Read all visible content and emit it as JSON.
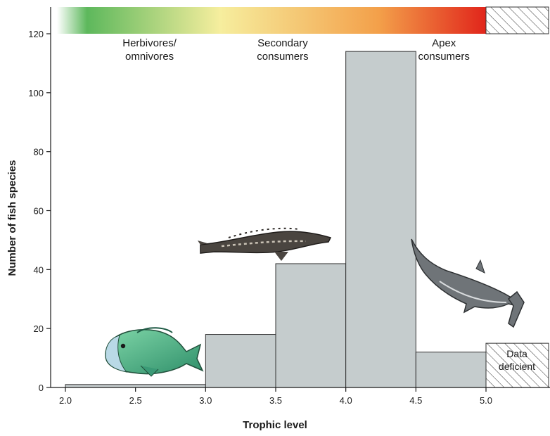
{
  "chart_data": {
    "type": "bar",
    "title": "",
    "xlabel": "Trophic level",
    "ylabel": "Number of fish species",
    "xlim": [
      2.0,
      5.5
    ],
    "ylim": [
      0,
      120
    ],
    "x_ticks": [
      "2.0",
      "2.5",
      "3.0",
      "3.5",
      "4.0",
      "4.5",
      "5.0"
    ],
    "y_ticks": [
      "0",
      "20",
      "40",
      "60",
      "80",
      "100",
      "120"
    ],
    "bins": [
      {
        "from": 2.0,
        "to": 3.0,
        "value": 1
      },
      {
        "from": 3.0,
        "to": 3.5,
        "value": 18
      },
      {
        "from": 3.5,
        "to": 4.0,
        "value": 42
      },
      {
        "from": 4.0,
        "to": 4.5,
        "value": 114
      },
      {
        "from": 4.5,
        "to": 5.0,
        "value": 12
      }
    ],
    "data_deficient": {
      "from": 5.0,
      "to": 5.5,
      "value": 15,
      "label_lines": [
        "Data",
        "deficient"
      ]
    },
    "bar_color": "#c5cccd",
    "bar_stroke": "#333333",
    "gradient_colors": [
      "#ffffff",
      "#5db85c",
      "#f6ee9e",
      "#f3a04a",
      "#e1251b"
    ],
    "band_labels": [
      {
        "x": 2.6,
        "lines": [
          "Herbivores/",
          "omnivores"
        ]
      },
      {
        "x": 3.55,
        "lines": [
          "Secondary",
          "consumers"
        ]
      },
      {
        "x": 4.7,
        "lines": [
          "Apex",
          "consumers"
        ]
      }
    ],
    "illustrations": [
      "parrotfish-icon",
      "sturgeon-icon",
      "hammerhead-shark-icon"
    ],
    "grid": false
  }
}
